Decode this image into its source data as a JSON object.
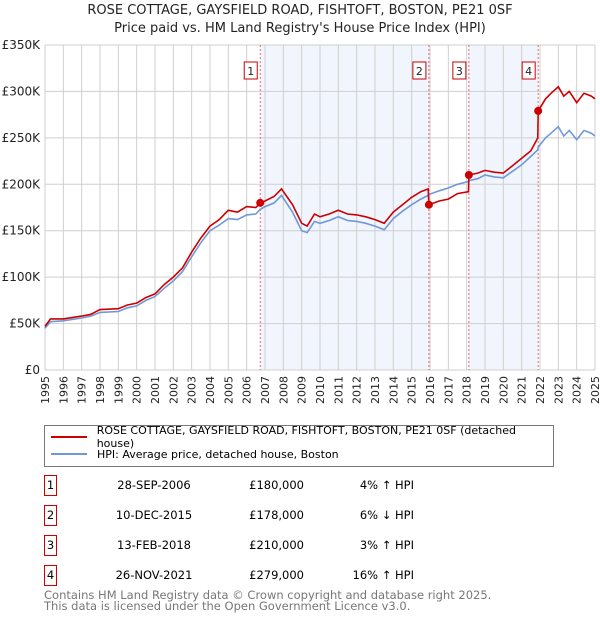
{
  "chart_data": {
    "type": "line",
    "title": "ROSE COTTAGE, GAYSFIELD ROAD, FISHTOFT, BOSTON, PE21 0SF",
    "subtitle": "Price paid vs. HM Land Registry's House Price Index (HPI)",
    "xlim": [
      1995,
      2025
    ],
    "ylim": [
      0,
      350000
    ],
    "y_ticks": [
      {
        "v": 0,
        "label": "£0"
      },
      {
        "v": 50000,
        "label": "£50K"
      },
      {
        "v": 100000,
        "label": "£100K"
      },
      {
        "v": 150000,
        "label": "£150K"
      },
      {
        "v": 200000,
        "label": "£200K"
      },
      {
        "v": 250000,
        "label": "£250K"
      },
      {
        "v": 300000,
        "label": "£300K"
      },
      {
        "v": 350000,
        "label": "£350K"
      }
    ],
    "x_ticks": [
      "1995",
      "1996",
      "1997",
      "1998",
      "1999",
      "2000",
      "2001",
      "2002",
      "2003",
      "2004",
      "2005",
      "2006",
      "2007",
      "2008",
      "2009",
      "2010",
      "2011",
      "2012",
      "2013",
      "2014",
      "2015",
      "2016",
      "2017",
      "2018",
      "2019",
      "2020",
      "2021",
      "2022",
      "2023",
      "2024",
      "2025"
    ],
    "series": [
      {
        "name": "ROSE COTTAGE, GAYSFIELD ROAD, FISHTOFT, BOSTON, PE21 0SF (detached house)",
        "color": "#cc0000",
        "x": [
          1995,
          1995.3,
          1996,
          1997,
          1997.5,
          1998,
          1999,
          1999.5,
          2000,
          2000.5,
          2001,
          2001.5,
          2002,
          2002.5,
          2003,
          2003.5,
          2004,
          2004.5,
          2005,
          2005.5,
          2006,
          2006.5,
          2006.74,
          2007,
          2007.5,
          2007.9,
          2008.5,
          2009,
          2009.3,
          2009.7,
          2010,
          2010.5,
          2011,
          2011.5,
          2012,
          2012.5,
          2013,
          2013.5,
          2014,
          2014.5,
          2015,
          2015.5,
          2015.9,
          2015.94,
          2016.5,
          2017,
          2017.5,
          2018.1,
          2018.12,
          2018.6,
          2019,
          2019.5,
          2020,
          2020.5,
          2021,
          2021.5,
          2021.88,
          2021.9,
          2022.3,
          2022.6,
          2023,
          2023.3,
          2023.6,
          2024,
          2024.4,
          2024.8,
          2025
        ],
        "y": [
          47000,
          55000,
          55000,
          58000,
          60000,
          65000,
          66000,
          70000,
          72000,
          78000,
          82000,
          92000,
          100000,
          110000,
          127000,
          142000,
          155000,
          162000,
          172000,
          170000,
          176000,
          175000,
          180000,
          182000,
          187000,
          195000,
          178000,
          158000,
          155000,
          168000,
          165000,
          168000,
          172000,
          168000,
          167000,
          165000,
          162000,
          158000,
          170000,
          178000,
          186000,
          192000,
          195000,
          178000,
          182000,
          184000,
          190000,
          192000,
          210000,
          212000,
          215000,
          213000,
          212000,
          220000,
          228000,
          236000,
          250000,
          279000,
          292000,
          298000,
          305000,
          295000,
          300000,
          288000,
          298000,
          295000,
          292000
        ]
      },
      {
        "name": "HPI: Average price, detached house, Boston",
        "color": "#6f98d8",
        "x": [
          1995,
          1995.3,
          1996,
          1997,
          1997.5,
          1998,
          1999,
          1999.5,
          2000,
          2000.5,
          2001,
          2001.5,
          2002,
          2002.5,
          2003,
          2003.5,
          2004,
          2004.5,
          2005,
          2005.5,
          2006,
          2006.5,
          2006.74,
          2007,
          2007.5,
          2007.9,
          2008.5,
          2009,
          2009.3,
          2009.7,
          2010,
          2010.5,
          2011,
          2011.5,
          2012,
          2012.5,
          2013,
          2013.5,
          2014,
          2014.5,
          2015,
          2015.5,
          2015.9,
          2015.94,
          2016.5,
          2017,
          2017.5,
          2018.1,
          2018.12,
          2018.6,
          2019,
          2019.5,
          2020,
          2020.5,
          2021,
          2021.5,
          2021.88,
          2021.9,
          2022.3,
          2022.6,
          2023,
          2023.3,
          2023.6,
          2024,
          2024.4,
          2024.8,
          2025
        ],
        "y": [
          45000,
          52000,
          53000,
          56000,
          58000,
          62000,
          63000,
          67000,
          69000,
          75000,
          79000,
          88000,
          96000,
          106000,
          122000,
          137000,
          150000,
          156000,
          163000,
          162000,
          167000,
          168000,
          173000,
          176000,
          180000,
          188000,
          170000,
          150000,
          148000,
          160000,
          158000,
          161000,
          165000,
          161000,
          160000,
          158000,
          155000,
          151000,
          163000,
          171000,
          178000,
          184000,
          188000,
          189000,
          193000,
          196000,
          200000,
          203000,
          204000,
          206000,
          210000,
          208000,
          207000,
          214000,
          221000,
          230000,
          237000,
          240000,
          250000,
          255000,
          262000,
          252000,
          258000,
          248000,
          258000,
          255000,
          252000
        ]
      }
    ],
    "sales": [
      {
        "label": "1",
        "x": 2006.74,
        "price": 180000
      },
      {
        "label": "2",
        "x": 2015.94,
        "price": 178000
      },
      {
        "label": "3",
        "x": 2018.12,
        "price": 210000
      },
      {
        "label": "4",
        "x": 2021.9,
        "price": 279000
      }
    ],
    "shaded_ranges": [
      [
        2006.74,
        2015.94
      ],
      [
        2018.12,
        2021.9
      ]
    ],
    "grid": true
  },
  "legend": {
    "property": "ROSE COTTAGE, GAYSFIELD ROAD, FISHTOFT, BOSTON, PE21 0SF (detached house)",
    "hpi": "HPI: Average price, detached house, Boston"
  },
  "transactions": [
    {
      "n": "1",
      "date": "28-SEP-2006",
      "price": "£180,000",
      "hpi": "4% ↑ HPI"
    },
    {
      "n": "2",
      "date": "10-DEC-2015",
      "price": "£178,000",
      "hpi": "6% ↓ HPI"
    },
    {
      "n": "3",
      "date": "13-FEB-2018",
      "price": "£210,000",
      "hpi": "3% ↑ HPI"
    },
    {
      "n": "4",
      "date": "26-NOV-2021",
      "price": "£279,000",
      "hpi": "16% ↑ HPI"
    }
  ],
  "footer": {
    "line1": "Contains HM Land Registry data © Crown copyright and database right 2025.",
    "line2": "This data is licensed under the Open Government Licence v3.0."
  }
}
